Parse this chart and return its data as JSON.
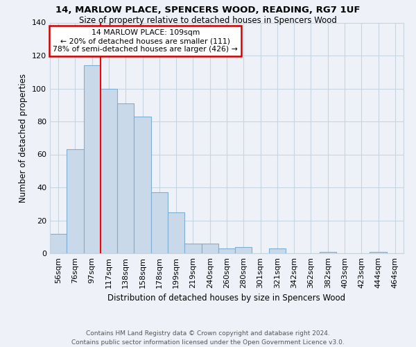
{
  "title1": "14, MARLOW PLACE, SPENCERS WOOD, READING, RG7 1UF",
  "title2": "Size of property relative to detached houses in Spencers Wood",
  "xlabel": "Distribution of detached houses by size in Spencers Wood",
  "ylabel": "Number of detached properties",
  "footnote": "Contains HM Land Registry data © Crown copyright and database right 2024.\nContains public sector information licensed under the Open Government Licence v3.0.",
  "bar_labels": [
    "56sqm",
    "76sqm",
    "97sqm",
    "117sqm",
    "138sqm",
    "158sqm",
    "178sqm",
    "199sqm",
    "219sqm",
    "240sqm",
    "260sqm",
    "280sqm",
    "301sqm",
    "321sqm",
    "342sqm",
    "362sqm",
    "382sqm",
    "403sqm",
    "423sqm",
    "444sqm",
    "464sqm"
  ],
  "bar_values": [
    12,
    63,
    114,
    100,
    91,
    83,
    37,
    25,
    6,
    6,
    3,
    4,
    0,
    3,
    0,
    0,
    1,
    0,
    0,
    1,
    0
  ],
  "bar_color": "#c9d9ea",
  "bar_edge_color": "#7bafd4",
  "property_line_x": 2.5,
  "annotation_line1": "14 MARLOW PLACE: 109sqm",
  "annotation_line2": "← 20% of detached houses are smaller (111)",
  "annotation_line3": "78% of semi-detached houses are larger (426) →",
  "annotation_box_color": "#ffffff",
  "annotation_box_edge": "#cc0000",
  "grid_color": "#c8d4e0",
  "bg_color": "#eef2f8",
  "ylim": [
    0,
    140
  ],
  "yticks": [
    0,
    20,
    40,
    60,
    80,
    100,
    120,
    140
  ]
}
